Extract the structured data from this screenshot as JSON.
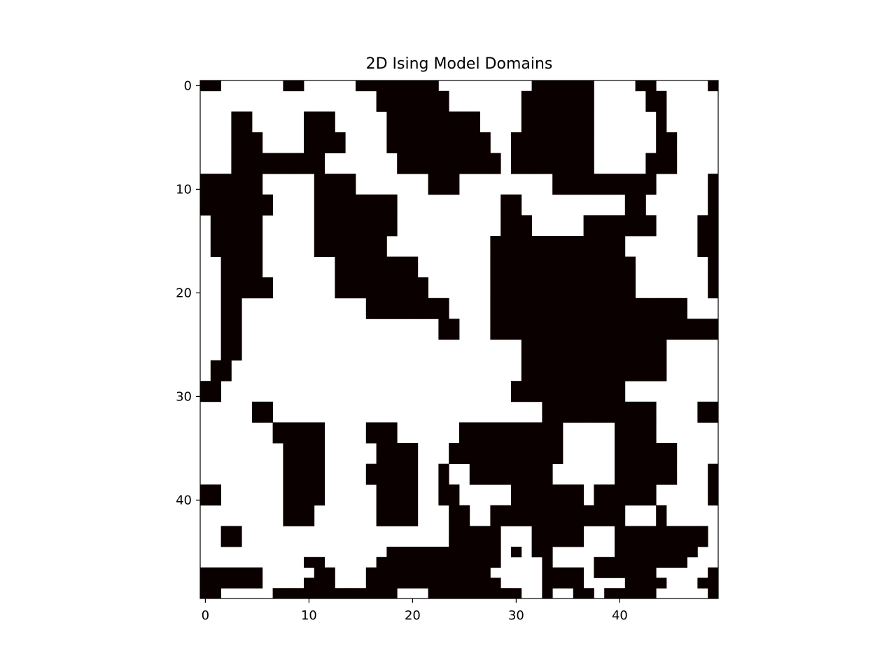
{
  "chart_data": {
    "type": "heatmap",
    "title": "2D Ising Model Domains",
    "xlabel": "",
    "ylabel": "",
    "colormap": {
      "-1": "#ffffff",
      "1": "#0b0000"
    },
    "x_ticks": [
      "0",
      "10",
      "20",
      "30",
      "40"
    ],
    "y_ticks": [
      "0",
      "10",
      "20",
      "30",
      "40"
    ],
    "x_tick_values": [
      0,
      10,
      20,
      30,
      40
    ],
    "y_tick_values": [
      0,
      10,
      20,
      30,
      40
    ],
    "xlim": [
      -0.5,
      49.5
    ],
    "ylim": [
      49.5,
      -0.5
    ],
    "grid": false,
    "legend": "none",
    "encoding": "Each row string: '#' = spin up (+1, black), '.' = spin down (-1, white)",
    "rows": [
      "##......##.....########.........######....##.....#",
      ".................#######.......#######.....##.....",
      ".................#######.......#######.....##.....",
      "...##.....###.....#########....#######......#.....",
      "...##.....###.....#########....#######......#.....",
      "...###....####....##########..########......##....",
      "...###....####....##########..########......##....",
      "...#########.......##########.########.....###....",
      "...#########.......##########.########.....###....",
      "######.....####.......###.........##########.....##",
      "######.....####.......###.........##########.....##",
      "#######....########..........##..........##......#",
      "#######....########..........##..........##......#",
      ".#####.....########..........###.....#######....##",
      ".#####.....########..........###.....#######....##",
      ".#####.....#######..........#############.......##",
      ".#####.....#######..........#############.......##",
      "..####.......########.......##############.......#",
      "..####.......########.......##############.......#",
      "..#####......#########......##############.......#",
      "..#####......#########......##############.......#",
      "..##............########....###################...",
      "..##............########....###################...",
      "..##...................##...######################",
      "..##...................##...######################",
      "..##...........................##############....",
      "..##...........................##############....",
      ".##............................##############....",
      ".##............................##############....",
      "##............................###########......."
    ]
  }
}
